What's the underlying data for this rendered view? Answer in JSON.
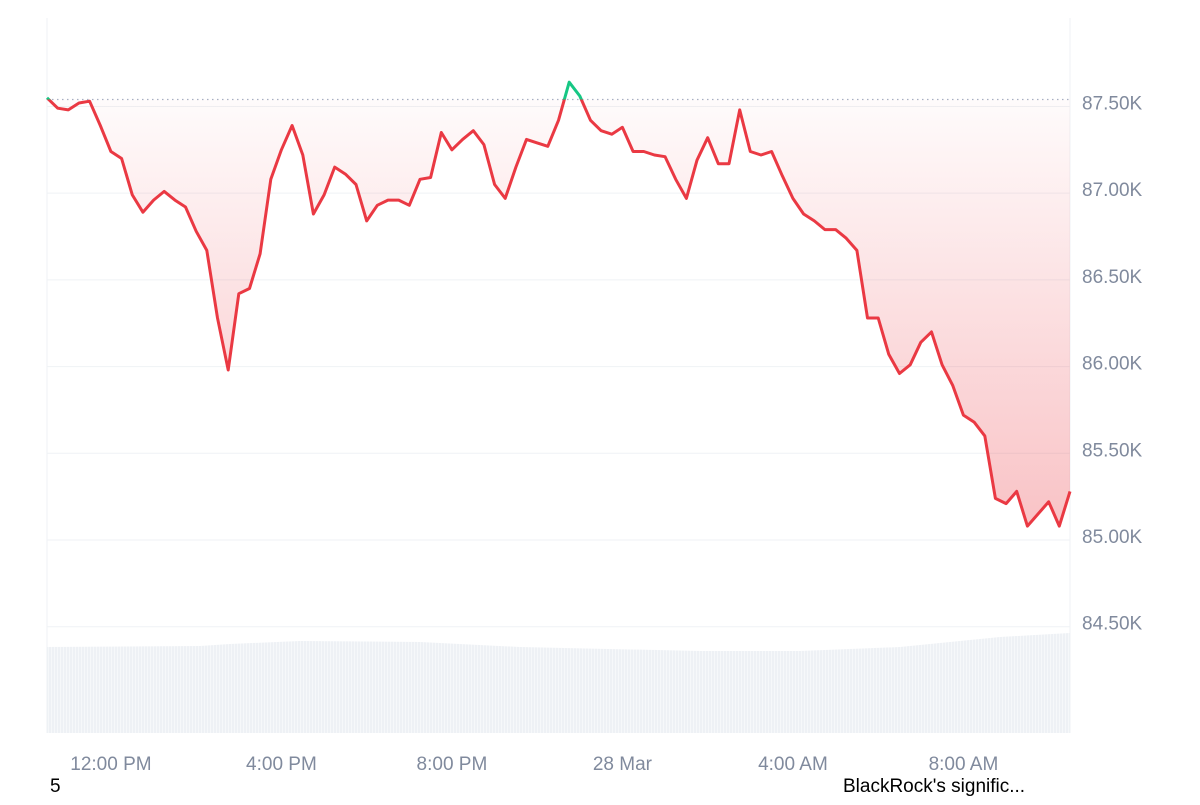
{
  "chart_data": {
    "type": "line",
    "x": [
      10.5,
      10.75,
      11,
      11.25,
      11.5,
      11.75,
      12,
      12.25,
      12.5,
      12.75,
      13,
      13.25,
      13.5,
      13.75,
      14,
      14.25,
      14.5,
      14.75,
      15,
      15.25,
      15.5,
      15.75,
      16,
      16.25,
      16.5,
      16.75,
      17,
      17.25,
      17.5,
      17.75,
      18,
      18.25,
      18.5,
      18.75,
      19,
      19.25,
      19.5,
      19.75,
      20,
      20.25,
      20.5,
      20.75,
      21,
      21.25,
      21.5,
      21.75,
      22,
      22.25,
      22.5,
      22.75,
      23,
      23.25,
      23.5,
      23.75,
      24,
      24.25,
      24.5,
      24.75,
      25,
      25.25,
      25.5,
      25.75,
      26,
      26.25,
      26.5,
      26.75,
      27,
      27.25,
      27.5,
      27.75,
      28,
      28.25,
      28.5,
      28.75,
      29,
      29.25,
      29.5,
      29.75,
      30,
      30.25,
      30.5,
      30.75,
      31,
      31.25,
      31.5,
      31.75,
      32,
      32.25,
      32.5,
      32.75,
      33,
      33.25,
      33.5,
      33.75,
      34,
      34.25,
      34.5
    ],
    "series": [
      {
        "values": [
          87550,
          87490,
          87480,
          87520,
          87530,
          87390,
          87240,
          87200,
          86990,
          86890,
          86960,
          87010,
          86960,
          86920,
          86780,
          86670,
          86280,
          85980,
          86420,
          86450,
          86650,
          87080,
          87250,
          87390,
          87220,
          86880,
          86990,
          87150,
          87110,
          87050,
          86840,
          86930,
          86960,
          86960,
          86930,
          87080,
          87090,
          87350,
          87250,
          87310,
          87360,
          87280,
          87050,
          86970,
          87150,
          87310,
          87290,
          87270,
          87420,
          87640,
          87560,
          87420,
          87360,
          87340,
          87380,
          87240,
          87240,
          87220,
          87210,
          87080,
          86970,
          87190,
          87320,
          87170,
          87170,
          87480,
          87240,
          87220,
          87240,
          87100,
          86970,
          86880,
          86840,
          86790,
          86790,
          86740,
          86670,
          86280,
          86280,
          86070,
          85960,
          86010,
          86140,
          86200,
          86010,
          85890,
          85720,
          85680,
          85600,
          85240,
          85210,
          85280,
          85080,
          85150,
          85220,
          85080,
          85280
        ]
      }
    ],
    "baseline": 87540,
    "color_up": "#16c784",
    "color_down": "#ea3943",
    "xlim": [
      10.5,
      34.5
    ],
    "xticks": [
      {
        "value": 12,
        "label": "12:00 PM"
      },
      {
        "value": 16,
        "label": "4:00 PM"
      },
      {
        "value": 20,
        "label": "8:00 PM"
      },
      {
        "value": 24,
        "label": "28 Mar"
      },
      {
        "value": 28,
        "label": "4:00 AM"
      },
      {
        "value": 32,
        "label": "8:00 AM"
      }
    ],
    "ylim": [
      83887,
      88010
    ],
    "yticks": [
      {
        "value": 84500,
        "label": "84.50K"
      },
      {
        "value": 85000,
        "label": "85.00K"
      },
      {
        "value": 85500,
        "label": "85.50K"
      },
      {
        "value": 86000,
        "label": "86.00K"
      },
      {
        "value": 86500,
        "label": "86.50K"
      },
      {
        "value": 87000,
        "label": "87.00K"
      },
      {
        "value": 87500,
        "label": "87.50K"
      }
    ],
    "grid": true,
    "footer_left": "5",
    "footer_right": "BlackRock's signific..."
  }
}
